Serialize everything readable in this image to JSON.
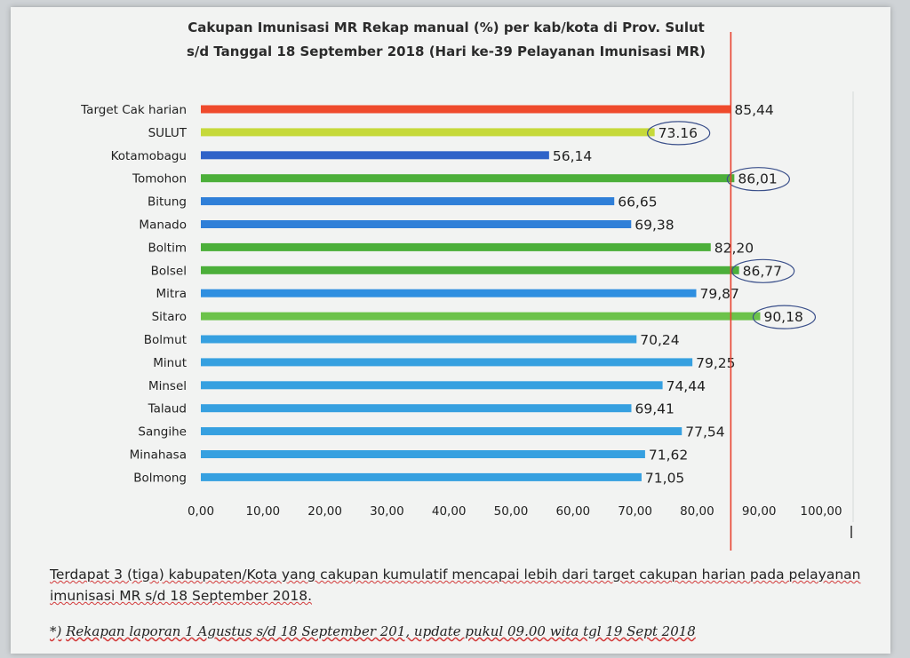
{
  "chart_data": {
    "type": "bar",
    "orientation": "horizontal",
    "title_line1": "Cakupan Imunisasi MR Rekap manual (%) per kab/kota di Prov. Sulut",
    "title_line2": "s/d Tanggal  18 September 2018  (Hari ke-39 Pelayanan Imunisasi MR)",
    "categories": [
      "Target Cak harian",
      "SULUT",
      "Kotamobagu",
      "Tomohon",
      "Bitung",
      "Manado",
      "Boltim",
      "Bolsel",
      "Mitra",
      "Sitaro",
      "Bolmut",
      "Minut",
      "Minsel",
      "Talaud",
      "Sangihe",
      "Minahasa",
      "Bolmong"
    ],
    "values": [
      85.44,
      73.16,
      56.14,
      86.01,
      66.65,
      69.38,
      82.2,
      86.77,
      79.87,
      90.18,
      70.24,
      79.25,
      74.44,
      69.41,
      77.54,
      71.62,
      71.05
    ],
    "value_labels": [
      "85,44",
      "73.16",
      "56,14",
      "86,01",
      "66,65",
      "69,38",
      "82,20",
      "86,77",
      "79,87",
      "90,18",
      "70,24",
      "79,25",
      "74,44",
      "69,41",
      "77,54",
      "71,62",
      "71,05"
    ],
    "bar_colors": [
      "#ef4a2c",
      "#c6d93a",
      "#2f63c8",
      "#4caf3a",
      "#2f7fd8",
      "#2f7fd8",
      "#4caf3a",
      "#4caf3a",
      "#2f8fe0",
      "#6cc24a",
      "#36a0e0",
      "#36a0e0",
      "#36a0e0",
      "#36a0e0",
      "#36a0e0",
      "#36a0e0",
      "#36a0e0"
    ],
    "circled": [
      "SULUT",
      "Tomohon",
      "Bolsel",
      "Sitaro"
    ],
    "target_value": 85.44,
    "target_line_color": "#e8412e",
    "xlim": [
      0,
      100
    ],
    "xticks": [
      "0,00",
      "10,00",
      "20,00",
      "30,00",
      "40,00",
      "50,00",
      "60,00",
      "70,00",
      "80,00",
      "90,00",
      "100,00"
    ]
  },
  "note": "Terdapat 3 (tiga) kabupaten/Kota yang cakupan kumulatif mencapai lebih dari target cakupan harian pada pelayanan imunisasi MR s/d 18 September 2018.",
  "footnote_prefix": "*)",
  "footnote": "Rekapan laporan 1 Agustus s/d 18 September 201, update  pukul 09.00 wita tgl 19 Sept 2018"
}
